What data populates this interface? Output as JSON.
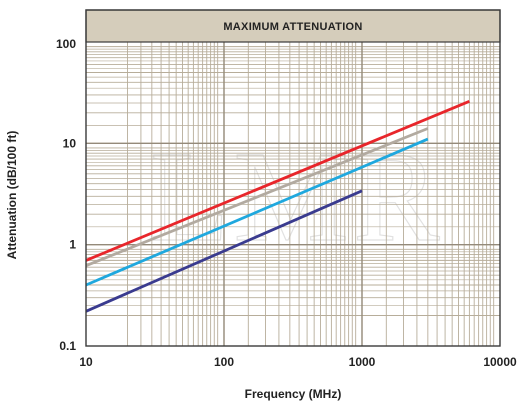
{
  "chart_data": {
    "type": "line",
    "title": "MAXIMUM ATTENUATION",
    "xlabel": "Frequency (MHz)",
    "ylabel": "Attenuation (dB/100 ft)",
    "xscale": "log",
    "yscale": "log",
    "xlim": [
      10,
      10000
    ],
    "ylim": [
      0.1,
      100
    ],
    "xticks": [
      "10",
      "100",
      "1000",
      "10000"
    ],
    "yticks": [
      "0.1",
      "1",
      "10",
      "100"
    ],
    "grid": true,
    "watermark_text": "LMR",
    "colors": {
      "frame": "#3a3a3a",
      "grid": "#b7ad9a",
      "title_band": "#d5cdbb"
    },
    "series": [
      {
        "color": "#e8262b",
        "x": [
          10,
          6000
        ],
        "y": [
          0.7,
          26
        ]
      },
      {
        "color": "#b2aaa0",
        "x": [
          10,
          3000
        ],
        "y": [
          0.62,
          14
        ]
      },
      {
        "color": "#1fa8de",
        "x": [
          10,
          3000
        ],
        "y": [
          0.4,
          11
        ]
      },
      {
        "color": "#3a3b8f",
        "x": [
          10,
          1000
        ],
        "y": [
          0.22,
          3.4
        ]
      }
    ]
  }
}
